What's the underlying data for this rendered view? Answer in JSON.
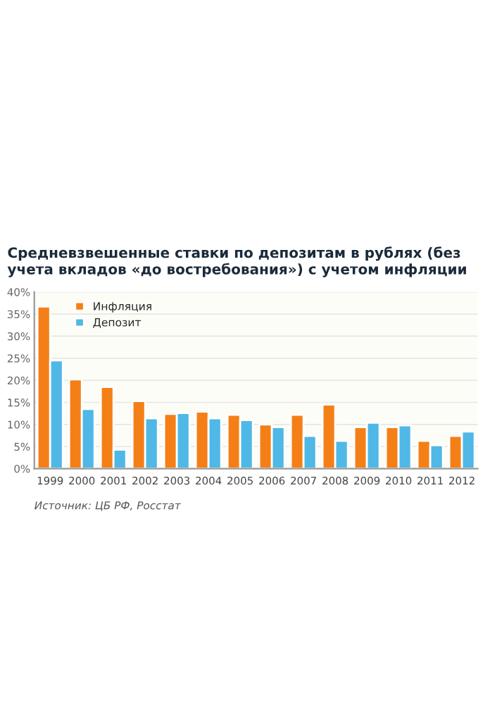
{
  "chart_data": {
    "type": "bar",
    "title": "Средневзвешенные ставки по депозитам в рублях (без учета вкладов «до востребования») с учетом инфляции",
    "categories": [
      "1999",
      "2000",
      "2001",
      "2002",
      "2003",
      "2004",
      "2005",
      "2006",
      "2007",
      "2008",
      "2009",
      "2010",
      "2011",
      "2012"
    ],
    "series": [
      {
        "name": "Инфляция",
        "color": "#f57f17",
        "values": [
          36.7,
          20.2,
          18.5,
          15.3,
          12.4,
          12.9,
          12.2,
          10.0,
          12.2,
          14.5,
          9.4,
          9.4,
          6.3,
          7.4
        ]
      },
      {
        "name": "Депозит",
        "color": "#4fb8e6",
        "values": [
          24.5,
          13.5,
          4.3,
          11.4,
          12.6,
          11.4,
          11.0,
          9.4,
          7.4,
          6.3,
          10.4,
          9.8,
          5.3,
          8.4
        ]
      }
    ],
    "ylim": [
      0,
      40
    ],
    "yticks": [
      {
        "value": 0,
        "label": "0%"
      },
      {
        "value": 5,
        "label": "5%"
      },
      {
        "value": 10,
        "label": "10%"
      },
      {
        "value": 15,
        "label": "15%"
      },
      {
        "value": 20,
        "label": "20%"
      },
      {
        "value": 25,
        "label": "25%"
      },
      {
        "value": 30,
        "label": "30%"
      },
      {
        "value": 35,
        "label": "35%"
      },
      {
        "value": 40,
        "label": "40%"
      }
    ],
    "grid": "y",
    "legend": "top left",
    "annotations": [
      "Источник: ЦБ РФ, Росстат"
    ]
  }
}
